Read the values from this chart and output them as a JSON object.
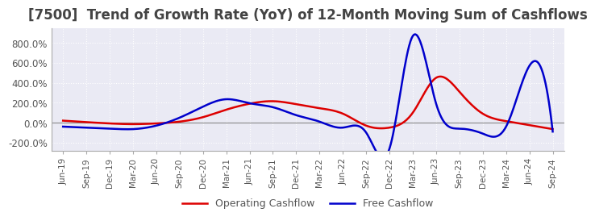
{
  "title": "[7500]  Trend of Growth Rate (YoY) of 12-Month Moving Sum of Cashflows",
  "title_fontsize": 12,
  "title_color": "#444444",
  "ylim": [
    -280,
    950
  ],
  "yticks": [
    -200,
    0,
    200,
    400,
    600,
    800
  ],
  "background_color": "#ffffff",
  "plot_bg_color": "#eaeaf4",
  "grid_color": "#ffffff",
  "legend_labels": [
    "Operating Cashflow",
    "Free Cashflow"
  ],
  "line_colors": [
    "#dd0000",
    "#0000cc"
  ],
  "x_labels": [
    "Jun-19",
    "Sep-19",
    "Dec-19",
    "Mar-20",
    "Jun-20",
    "Sep-20",
    "Dec-20",
    "Mar-21",
    "Jun-21",
    "Sep-21",
    "Dec-21",
    "Mar-22",
    "Jun-22",
    "Sep-22",
    "Dec-22",
    "Mar-23",
    "Jun-23",
    "Sep-23",
    "Dec-23",
    "Mar-24",
    "Jun-24",
    "Sep-24"
  ],
  "operating_cashflow": [
    20,
    5,
    -8,
    -15,
    -8,
    10,
    55,
    130,
    190,
    215,
    185,
    145,
    90,
    -30,
    -50,
    100,
    450,
    310,
    90,
    15,
    -25,
    -65
  ],
  "free_cashflow": [
    -40,
    -50,
    -60,
    -65,
    -30,
    50,
    160,
    235,
    195,
    155,
    75,
    10,
    -50,
    -100,
    -260,
    870,
    190,
    -60,
    -110,
    -40,
    570,
    -90
  ]
}
